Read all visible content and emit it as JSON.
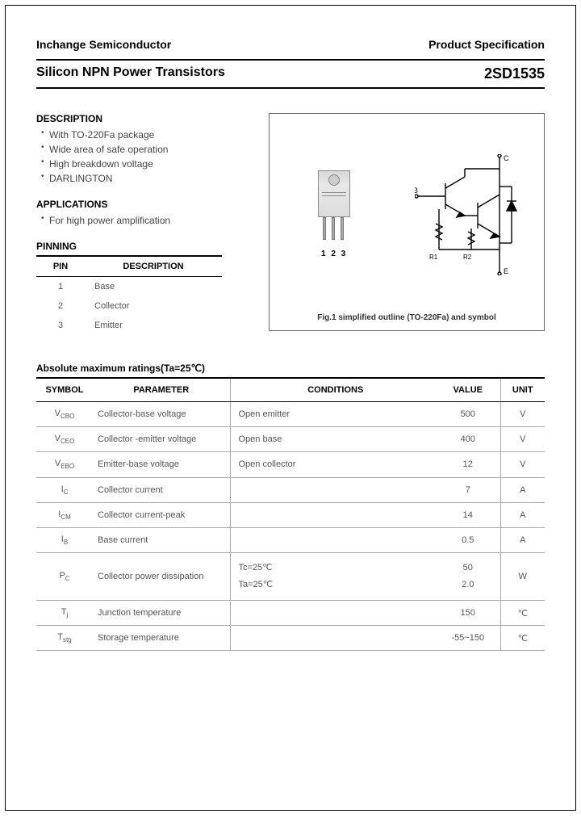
{
  "header": {
    "company": "Inchange Semiconductor",
    "docType": "Product Specification",
    "productTitle": "Silicon NPN Power Transistors",
    "partNumber": "2SD1535"
  },
  "description": {
    "heading": "DESCRIPTION",
    "items": [
      "With TO-220Fa package",
      "Wide area of safe operation",
      "High breakdown voltage",
      "DARLINGTON"
    ]
  },
  "applications": {
    "heading": "APPLICATIONS",
    "items": [
      "For high power amplification"
    ]
  },
  "pinning": {
    "heading": "PINNING",
    "colPin": "PIN",
    "colDesc": "DESCRIPTION",
    "rows": [
      {
        "pin": "1",
        "desc": "Base"
      },
      {
        "pin": "2",
        "desc": "Collector"
      },
      {
        "pin": "3",
        "desc": "Emitter"
      }
    ]
  },
  "figure": {
    "pinLabel": "1 2 3",
    "caption": "Fig.1 simplified outline (TO-220Fa) and symbol",
    "terminals": {
      "b": "B",
      "c": "C",
      "e": "E",
      "r1": "R1",
      "r2": "R2"
    }
  },
  "ratings": {
    "heading": "Absolute maximum ratings(Ta=25℃)",
    "cols": {
      "symbol": "SYMBOL",
      "parameter": "PARAMETER",
      "conditions": "CONDITIONS",
      "value": "VALUE",
      "unit": "UNIT"
    },
    "rows": [
      {
        "sym": "V",
        "sub": "CBO",
        "param": "Collector-base voltage",
        "cond": "Open emitter",
        "val": "500",
        "unit": "V"
      },
      {
        "sym": "V",
        "sub": "CEO",
        "param": "Collector -emitter voltage",
        "cond": "Open base",
        "val": "400",
        "unit": "V"
      },
      {
        "sym": "V",
        "sub": "EBO",
        "param": "Emitter-base voltage",
        "cond": "Open collector",
        "val": "12",
        "unit": "V"
      },
      {
        "sym": "I",
        "sub": "C",
        "param": "Collector current",
        "cond": "",
        "val": "7",
        "unit": "A"
      },
      {
        "sym": "I",
        "sub": "CM",
        "param": "Collector current-peak",
        "cond": "",
        "val": "14",
        "unit": "A"
      },
      {
        "sym": "I",
        "sub": "B",
        "param": "Base current",
        "cond": "",
        "val": "0.5",
        "unit": "A"
      }
    ],
    "pcRow": {
      "sym": "P",
      "sub": "C",
      "param": "Collector power dissipation",
      "cond1": "Tc=25℃",
      "val1": "50",
      "cond2": "Ta=25℃",
      "val2": "2.0",
      "unit": "W"
    },
    "tailRows": [
      {
        "sym": "T",
        "sub": "j",
        "param": "Junction temperature",
        "cond": "",
        "val": "150",
        "unit": "℃"
      },
      {
        "sym": "T",
        "sub": "stg",
        "param": "Storage temperature",
        "cond": "",
        "val": "-55~150",
        "unit": "℃"
      }
    ]
  }
}
